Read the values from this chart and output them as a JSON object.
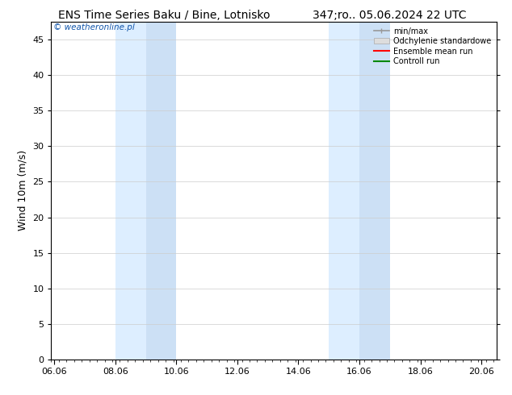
{
  "title_left": "ENS Time Series Baku / Bine, Lotnisko",
  "title_right": "347;ro.. 05.06.2024 22 UTC",
  "ylabel": "Wind 10m (m/s)",
  "watermark": "© weatheronline.pl",
  "xlabel_ticks": [
    "06.06",
    "08.06",
    "10.06",
    "12.06",
    "14.06",
    "16.06",
    "18.06",
    "20.06"
  ],
  "xlabel_tick_values": [
    0,
    2,
    4,
    6,
    8,
    10,
    12,
    14
  ],
  "yticks": [
    0,
    5,
    10,
    15,
    20,
    25,
    30,
    35,
    40,
    45
  ],
  "ylim": [
    0,
    47.5
  ],
  "xlim": [
    -0.1,
    14.5
  ],
  "shaded_regions": [
    {
      "xmin": 2.0,
      "xmax": 3.0,
      "color": "#ddeeff"
    },
    {
      "xmin": 3.0,
      "xmax": 4.0,
      "color": "#cce0f5"
    },
    {
      "xmin": 9.0,
      "xmax": 10.0,
      "color": "#ddeeff"
    },
    {
      "xmin": 10.0,
      "xmax": 11.0,
      "color": "#cce0f5"
    }
  ],
  "bg_color": "#ffffff",
  "plot_bg_color": "#ffffff",
  "grid_color": "#cccccc",
  "legend_entries": [
    {
      "label": "min/max",
      "color": "#999999",
      "style": "minmax"
    },
    {
      "label": "Odchylenie standardowe",
      "color": "#cccccc",
      "style": "band"
    },
    {
      "label": "Ensemble mean run",
      "color": "#ff0000",
      "style": "line"
    },
    {
      "label": "Controll run",
      "color": "#008800",
      "style": "line"
    }
  ],
  "title_fontsize": 10,
  "axis_fontsize": 8,
  "watermark_fontsize": 7.5,
  "watermark_color": "#1155aa"
}
